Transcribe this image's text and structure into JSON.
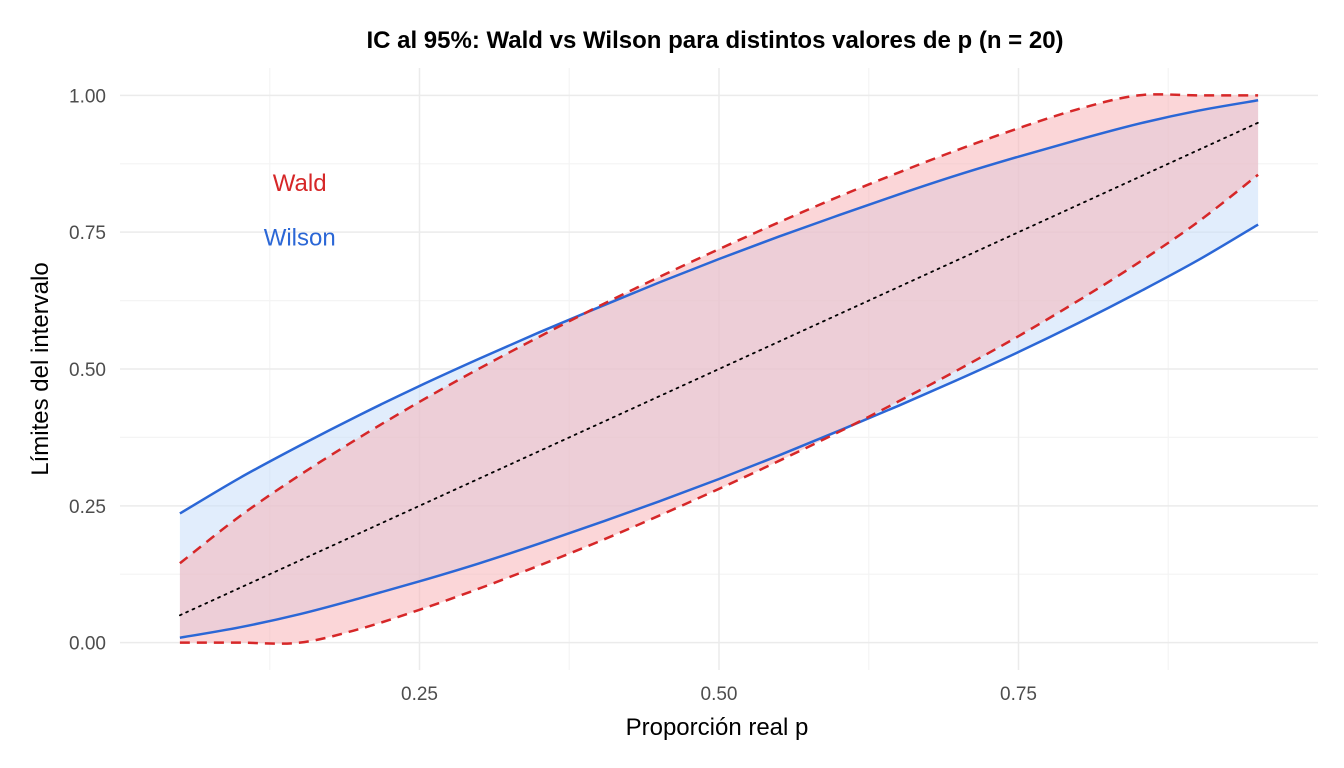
{
  "chart_data": {
    "type": "area",
    "title": "IC al 95%: Wald vs Wilson para distintos valores de p  (n = 20)",
    "xlabel": "Proporción real p",
    "ylabel": "Límites del intervalo",
    "xlim": [
      0.0,
      1.0
    ],
    "ylim": [
      -0.05,
      1.05
    ],
    "x_ticks": [
      0.25,
      0.5,
      0.75
    ],
    "x_tick_labels": [
      "0.25",
      "0.50",
      "0.75"
    ],
    "y_ticks": [
      0.0,
      0.25,
      0.5,
      0.75,
      1.0
    ],
    "y_tick_labels": [
      "0.00",
      "0.25",
      "0.50",
      "0.75",
      "1.00"
    ],
    "grid": true,
    "legend": "none",
    "annotations": [
      {
        "text": "Wald",
        "x": 0.15,
        "y": 0.84,
        "color": "#d62728"
      },
      {
        "text": "Wilson",
        "x": 0.15,
        "y": 0.74,
        "color": "#2b67d6"
      }
    ],
    "x": [
      0.05,
      0.1,
      0.15,
      0.2,
      0.25,
      0.3,
      0.35,
      0.4,
      0.45,
      0.5,
      0.55,
      0.6,
      0.65,
      0.7,
      0.75,
      0.8,
      0.85,
      0.9,
      0.95
    ],
    "series": [
      {
        "name": "Wald",
        "part": "lower",
        "color": "#d62728",
        "dash": "dashed",
        "values": [
          0.0,
          0.0,
          0.0,
          0.025,
          0.06,
          0.099,
          0.141,
          0.185,
          0.232,
          0.281,
          0.332,
          0.385,
          0.441,
          0.499,
          0.56,
          0.625,
          0.694,
          0.769,
          0.855
        ]
      },
      {
        "name": "Wald",
        "part": "upper",
        "color": "#d62728",
        "dash": "dashed",
        "values": [
          0.145,
          0.231,
          0.306,
          0.375,
          0.44,
          0.501,
          0.559,
          0.615,
          0.668,
          0.719,
          0.768,
          0.815,
          0.859,
          0.901,
          0.94,
          0.975,
          1.0,
          1.0,
          1.0
        ]
      },
      {
        "name": "Wilson",
        "part": "lower",
        "color": "#2b67d6",
        "dash": "solid",
        "values": [
          0.009,
          0.028,
          0.052,
          0.081,
          0.112,
          0.145,
          0.181,
          0.219,
          0.258,
          0.299,
          0.342,
          0.387,
          0.433,
          0.481,
          0.531,
          0.584,
          0.64,
          0.699,
          0.764
        ]
      },
      {
        "name": "Wilson",
        "part": "upper",
        "color": "#2b67d6",
        "dash": "solid",
        "values": [
          0.236,
          0.301,
          0.36,
          0.416,
          0.469,
          0.519,
          0.567,
          0.613,
          0.658,
          0.701,
          0.742,
          0.781,
          0.819,
          0.855,
          0.888,
          0.919,
          0.948,
          0.972,
          0.991
        ]
      },
      {
        "name": "p",
        "part": "reference",
        "color": "#000000",
        "dash": "dotted",
        "values": [
          0.05,
          0.1,
          0.15,
          0.2,
          0.25,
          0.3,
          0.35,
          0.4,
          0.45,
          0.5,
          0.55,
          0.6,
          0.65,
          0.7,
          0.75,
          0.8,
          0.85,
          0.9,
          0.95
        ]
      }
    ],
    "colors": {
      "wald_fill": "#f8b4b8",
      "wilson_fill": "#c8def9",
      "grid_major": "#ebebeb",
      "grid_minor": "#f4f4f4"
    }
  }
}
